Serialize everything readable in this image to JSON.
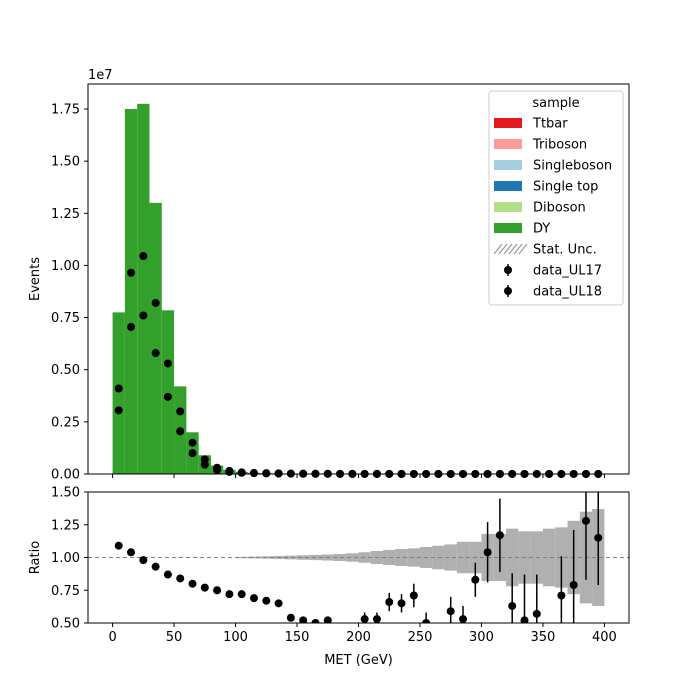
{
  "chart_data": [
    {
      "type": "bar",
      "panel": "main",
      "ylabel": "Events",
      "y_offset_text": "1e7",
      "ylim": [
        0,
        1.87
      ],
      "xlim": [
        -20,
        420
      ],
      "yticks": [
        "0.00",
        "0.25",
        "0.50",
        "0.75",
        "1.00",
        "1.25",
        "1.50",
        "1.75"
      ],
      "ytick_values": [
        0,
        0.25,
        0.5,
        0.75,
        1.0,
        1.25,
        1.5,
        1.75
      ],
      "bin_edges": [
        0,
        10,
        20,
        30,
        40,
        50,
        60,
        70,
        80,
        90,
        100,
        110,
        120,
        130,
        140,
        150,
        160,
        170,
        180,
        190,
        200,
        210,
        220,
        230,
        240,
        250,
        260,
        270,
        280,
        290,
        300,
        310,
        320,
        330,
        340,
        350,
        360,
        370,
        380,
        390,
        400
      ],
      "stacked_series": [
        {
          "name": "DY",
          "color": "#33a02c",
          "values": [
            0.775,
            1.75,
            1.775,
            1.3,
            0.785,
            0.42,
            0.2,
            0.09,
            0.04,
            0.02,
            0.01,
            0.006,
            0.004,
            0.003,
            0.002,
            0.0015,
            0.001,
            0.001,
            0.0008,
            0.0006,
            0.0005,
            0.0004,
            0.0003,
            0.0003,
            0.0002,
            0.0002,
            0.0002,
            0.0001,
            0.0001,
            0.0001,
            0.0001,
            0.0001,
            0.0001,
            0.0001,
            0.0001,
            0.0001,
            0.0001,
            0.0001,
            0.0001,
            0.0001
          ]
        }
      ],
      "data_series": [
        {
          "name": "data_UL17",
          "color": "#000000",
          "x": [
            5,
            15,
            25,
            35,
            45,
            55,
            65,
            75,
            85,
            95,
            105,
            115,
            125,
            135,
            145,
            155,
            165,
            175,
            185,
            195,
            205,
            215,
            225,
            235,
            245,
            255,
            265,
            275,
            285,
            295,
            305,
            315,
            325,
            335,
            345,
            355,
            365,
            375,
            385,
            395
          ],
          "values": [
            0.305,
            0.705,
            0.76,
            0.58,
            0.37,
            0.205,
            0.1,
            0.045,
            0.02,
            0.01,
            0.006,
            0.004,
            0.003,
            0.002,
            0.0015,
            0.001,
            0.001,
            0.0008,
            0.0006,
            0.0005,
            0.0004,
            0.0003,
            0.0003,
            0.0002,
            0.0002,
            0.0002,
            0.0001,
            0.0001,
            0.0001,
            0.0001,
            0.0001,
            0.0001,
            0.0001,
            0.0001,
            0.0001,
            0.0001,
            0.0001,
            0.0001,
            0.0001,
            0.0001
          ]
        },
        {
          "name": "data_UL18",
          "color": "#000000",
          "x": [
            5,
            15,
            25,
            35,
            45,
            55,
            65,
            75,
            85,
            95,
            105,
            115,
            125,
            135,
            145,
            155,
            165,
            175,
            185,
            195,
            205,
            215,
            225,
            235,
            245,
            255,
            265,
            275,
            285,
            295,
            305,
            315,
            325,
            335,
            345,
            355,
            365,
            375,
            385,
            395
          ],
          "values": [
            0.41,
            0.965,
            1.045,
            0.82,
            0.53,
            0.3,
            0.15,
            0.07,
            0.03,
            0.015,
            0.008,
            0.005,
            0.004,
            0.003,
            0.002,
            0.0015,
            0.001,
            0.001,
            0.0008,
            0.0006,
            0.0005,
            0.0004,
            0.0003,
            0.0003,
            0.0002,
            0.0002,
            0.0002,
            0.0001,
            0.0001,
            0.0001,
            0.0001,
            0.0001,
            0.0001,
            0.0001,
            0.0001,
            0.0001,
            0.0001,
            0.0001,
            0.0001,
            0.0001
          ]
        }
      ],
      "legend": {
        "title": "sample",
        "position": "top-right",
        "entries": [
          {
            "label": "Ttbar",
            "kind": "patch",
            "color": "#e31a1c"
          },
          {
            "label": "Triboson",
            "kind": "patch",
            "color": "#fb9a99"
          },
          {
            "label": "Singleboson",
            "kind": "patch",
            "color": "#a6cee3"
          },
          {
            "label": "Single top",
            "kind": "patch",
            "color": "#1f78b4"
          },
          {
            "label": "Diboson",
            "kind": "patch",
            "color": "#b2df8a"
          },
          {
            "label": "DY",
            "kind": "patch",
            "color": "#33a02c"
          },
          {
            "label": "Stat. Unc.",
            "kind": "hatch",
            "color": "#999999"
          },
          {
            "label": "data_UL17",
            "kind": "marker",
            "color": "#000000"
          },
          {
            "label": "data_UL18",
            "kind": "marker",
            "color": "#000000"
          }
        ]
      }
    },
    {
      "type": "scatter",
      "panel": "ratio",
      "xlabel": "MET (GeV)",
      "ylabel": "Ratio",
      "xlim": [
        -20,
        420
      ],
      "ylim": [
        0.5,
        1.5
      ],
      "xticks": [
        "0",
        "50",
        "100",
        "150",
        "200",
        "250",
        "300",
        "350",
        "400"
      ],
      "xtick_values": [
        0,
        50,
        100,
        150,
        200,
        250,
        300,
        350,
        400
      ],
      "yticks": [
        "0.50",
        "0.75",
        "1.00",
        "1.25",
        "1.50"
      ],
      "ytick_values": [
        0.5,
        0.75,
        1.0,
        1.25,
        1.5
      ],
      "reference_line": 1.0,
      "stat_unc_band": {
        "color": "#b0b0b0",
        "bin_edges": [
          100,
          110,
          120,
          130,
          140,
          150,
          160,
          170,
          180,
          190,
          200,
          210,
          220,
          230,
          240,
          250,
          260,
          270,
          280,
          290,
          300,
          310,
          320,
          330,
          340,
          350,
          360,
          370,
          380,
          390,
          400
        ],
        "half_width": [
          0.005,
          0.007,
          0.009,
          0.012,
          0.014,
          0.017,
          0.02,
          0.023,
          0.027,
          0.032,
          0.04,
          0.05,
          0.058,
          0.065,
          0.07,
          0.08,
          0.09,
          0.1,
          0.12,
          0.12,
          0.18,
          0.18,
          0.22,
          0.2,
          0.2,
          0.22,
          0.23,
          0.28,
          0.35,
          0.37
        ]
      },
      "points": {
        "x": [
          5,
          15,
          25,
          35,
          45,
          55,
          65,
          75,
          85,
          95,
          105,
          115,
          125,
          135,
          145,
          155,
          165,
          175,
          205,
          215,
          225,
          235,
          245,
          255,
          275,
          285,
          295,
          305,
          315,
          325,
          335,
          345,
          365,
          375,
          385,
          395
        ],
        "values": [
          1.09,
          1.04,
          0.98,
          0.93,
          0.87,
          0.84,
          0.8,
          0.77,
          0.75,
          0.72,
          0.72,
          0.69,
          0.67,
          0.65,
          0.54,
          0.52,
          0.5,
          0.52,
          0.53,
          0.53,
          0.66,
          0.65,
          0.71,
          0.5,
          0.59,
          0.53,
          0.83,
          1.04,
          1.17,
          0.63,
          0.52,
          0.57,
          0.71,
          0.79,
          1.28,
          1.15
        ],
        "err": [
          0.005,
          0.005,
          0.005,
          0.005,
          0.005,
          0.005,
          0.005,
          0.005,
          0.005,
          0.005,
          0.005,
          0.01,
          0.01,
          0.01,
          0.02,
          0.02,
          0.02,
          0.03,
          0.05,
          0.05,
          0.07,
          0.07,
          0.09,
          0.08,
          0.11,
          0.1,
          0.13,
          0.23,
          0.28,
          0.25,
          0.35,
          0.3,
          0.3,
          0.42,
          0.45,
          0.36
        ]
      }
    }
  ]
}
